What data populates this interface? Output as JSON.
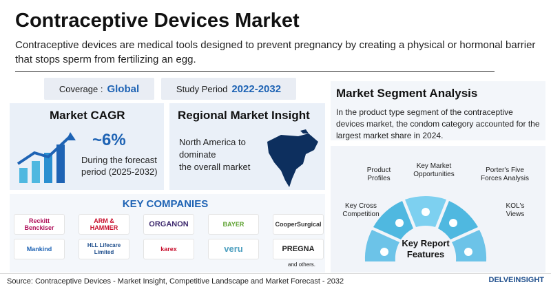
{
  "header": {
    "title": "Contraceptive Devices Market",
    "subtitle": "Contraceptive devices are medical tools designed to prevent pregnancy by creating a physical or hormonal barrier that stops sperm from fertilizing an egg."
  },
  "coverage": {
    "label": "Coverage :",
    "value": "Global"
  },
  "study_period": {
    "label": "Study Period",
    "value": "2022-2032"
  },
  "cagr": {
    "title": "Market CAGR",
    "value": "~6%",
    "desc_line1": "During the forecast",
    "desc_line2": "period (2025-2032)"
  },
  "regional": {
    "title": "Regional Market Insight",
    "line1": "North America to",
    "line2": "dominate",
    "line3": "the overall market"
  },
  "segment": {
    "title": "Market Segment Analysis",
    "text": "In the product type segment of the contraceptive devices market, the condom category accounted for the largest market share in 2024."
  },
  "companies": {
    "title": "KEY COMPANIES",
    "logos": [
      "Reckitt Benckiser",
      "ARM & HAMMER",
      "ORGANON",
      "BAYER",
      "CooperSurgical",
      "Mankind",
      "HLL Lifecare Limited",
      "karex",
      "veru",
      "PREGNA"
    ],
    "others": "and others."
  },
  "features": {
    "center_line1": "Key Report",
    "center_line2": "Features",
    "items": [
      "Key Cross Competition",
      "Product Profiles",
      "Key Market Opportunities",
      "Porter's Five Forces Analysis",
      "KOL's Views"
    ]
  },
  "footer": {
    "source": "Source: Contraceptive Devices - Market Insight, Competitive Landscape and Market Forecast - 2032",
    "brand": "DELVEINSIGHT"
  },
  "colors": {
    "accent": "#1e63b4",
    "panel": "#eaf0f8",
    "teal": "#4fb8e0"
  }
}
